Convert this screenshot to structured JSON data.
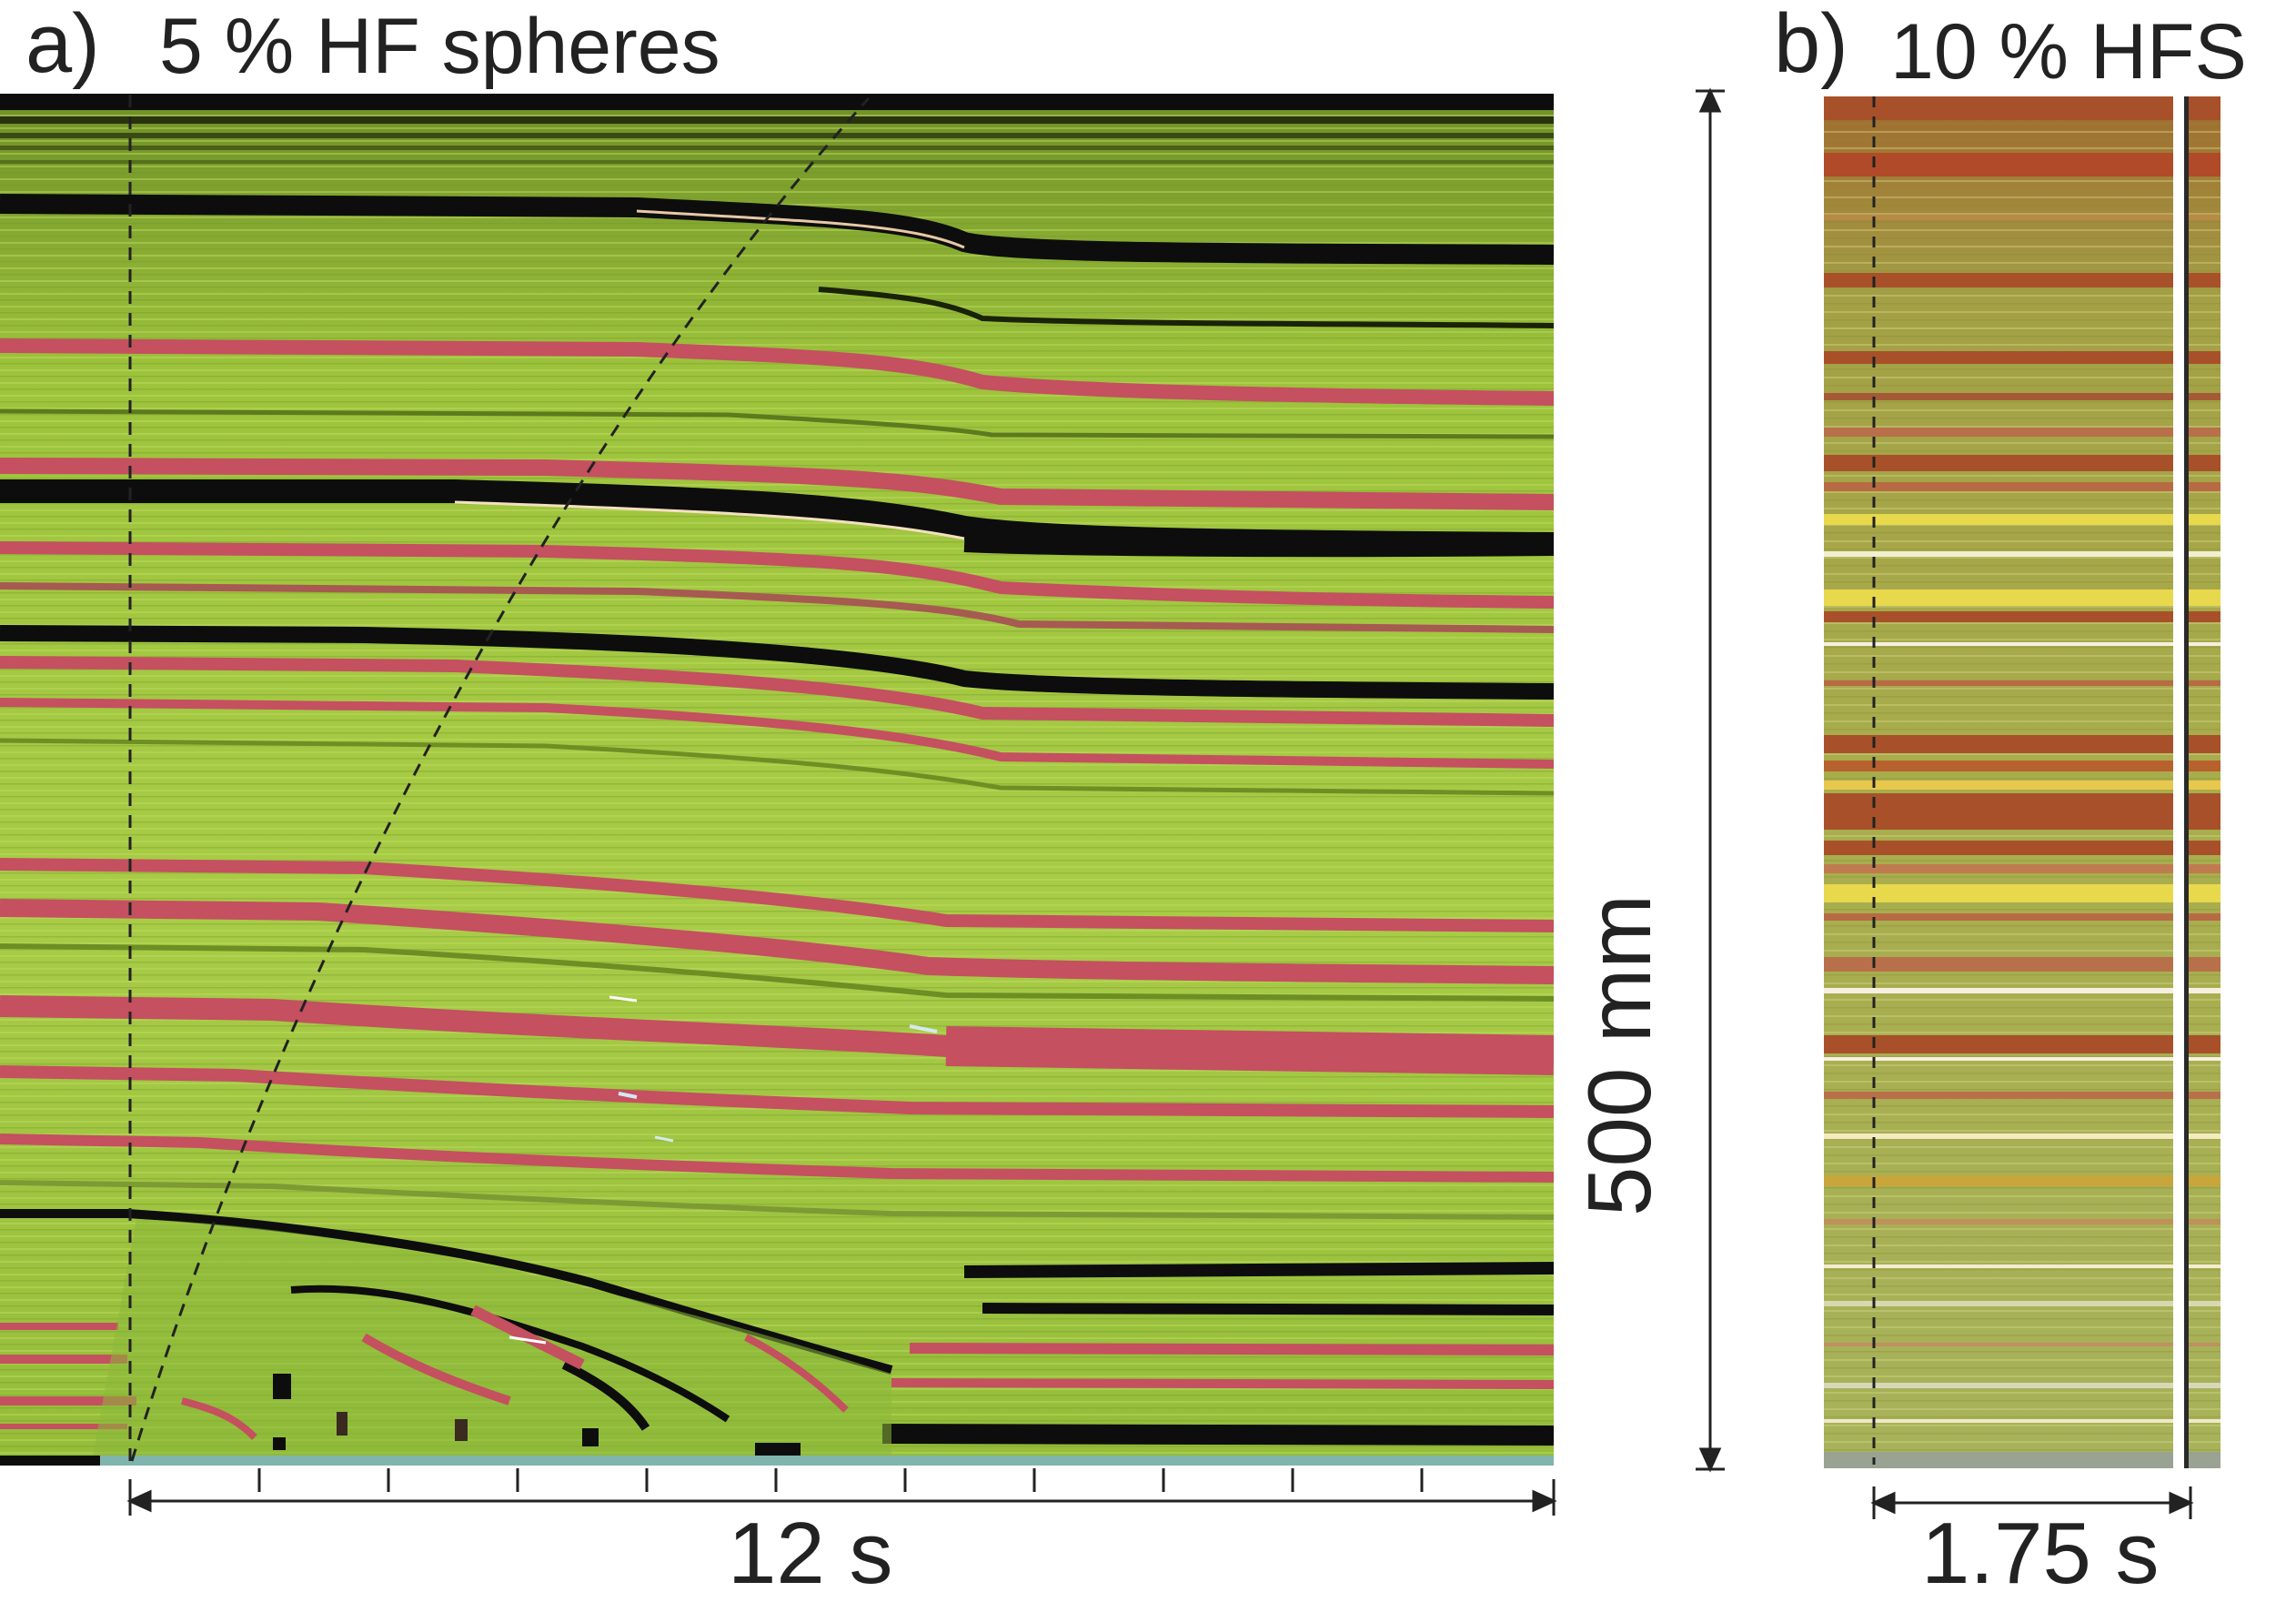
{
  "panel_a": {
    "letter": "a)",
    "title": "5 % HF spheres",
    "time_scale": "12 s"
  },
  "panel_b": {
    "letter": "b)",
    "title": "10 % HFS",
    "time_scale": "1.75 s"
  },
  "height_scale": "500 mm",
  "colors": {
    "green": "#9dc33c",
    "green_light": "#b4d456",
    "green_dark": "#7ea42e",
    "pink": "#c45060",
    "black": "#0d0d0d",
    "brown": "#a8502a",
    "olive": "#a7aa4a",
    "yellow": "#e8d84c",
    "teal": "#7fb5ad"
  }
}
